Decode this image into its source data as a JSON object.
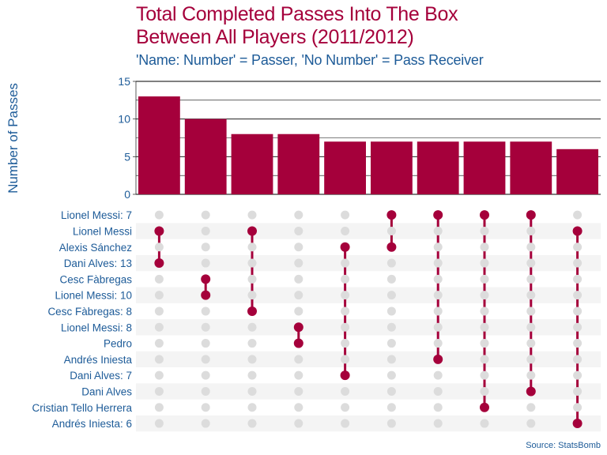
{
  "title_line1": "Total Completed Passes Into The Box",
  "title_line2": "Between All Players (2011/2012)",
  "subtitle": "'Name: Number' = Passer, 'No Number' = Pass Receiver",
  "source": "Source: StatsBomb",
  "colors": {
    "accent": "#a5003b",
    "text": "#1d5b98",
    "dot_inactive": "#dcdcdc",
    "stripe": "#f4f4f4",
    "grid": "#000000"
  },
  "chart_data": {
    "type": "bar",
    "title": "Total Completed Passes Into The Box Between All Players (2011/2012)",
    "subtitle": "'Name: Number' = Passer, 'No Number' = Pass Receiver",
    "ylabel": "Number of Passes",
    "xlabel": "",
    "ylim": [
      0,
      15
    ],
    "yticks": [
      0,
      5,
      10,
      15
    ],
    "grid": true,
    "values": [
      13,
      10,
      8,
      8,
      7,
      7,
      7,
      7,
      7,
      6
    ],
    "sets": [
      "Lionel Messi: 7",
      "Lionel Messi",
      "Alexis Sánchez",
      "Dani Alves: 13",
      "Cesc Fàbregas",
      "Lionel Messi: 10",
      "Cesc Fàbregas: 8",
      "Lionel Messi: 8",
      "Pedro",
      "Andrés Iniesta",
      "Dani Alves: 7",
      "Dani Alves",
      "Cristian Tello Herrera",
      "Andrés Iniesta: 6"
    ],
    "combinations": [
      [
        1,
        3
      ],
      [
        4,
        5
      ],
      [
        1,
        6
      ],
      [
        7,
        8
      ],
      [
        2,
        10
      ],
      [
        0,
        2
      ],
      [
        0,
        9
      ],
      [
        0,
        12
      ],
      [
        0,
        11
      ],
      [
        1,
        13
      ]
    ]
  }
}
